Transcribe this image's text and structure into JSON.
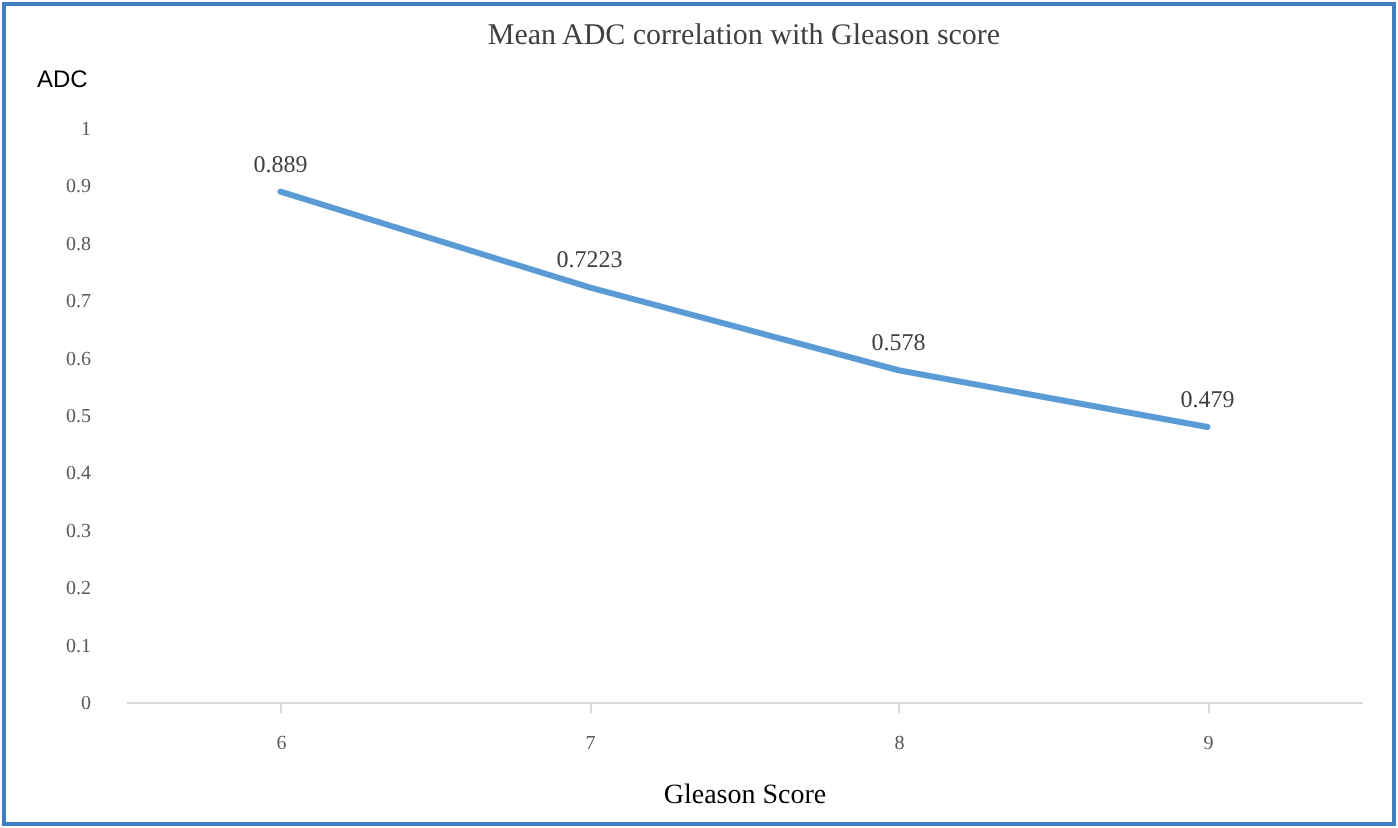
{
  "chart_data": {
    "type": "line",
    "title": "Mean ADC correlation with Gleason score",
    "xlabel": "Gleason Score",
    "ylabel": "ADC",
    "categories": [
      "6",
      "7",
      "8",
      "9"
    ],
    "series": [
      {
        "color": "#5b9bd5",
        "values": [
          0.889,
          0.7223,
          0.578,
          0.479
        ]
      }
    ],
    "ylim": [
      0,
      1
    ],
    "yticks": [
      0,
      0.1,
      0.2,
      0.3,
      0.4,
      0.5,
      0.6,
      0.7,
      0.8,
      0.9,
      1
    ],
    "data_labels": true,
    "marker": "none",
    "line_style": "solid",
    "grid": false
  }
}
